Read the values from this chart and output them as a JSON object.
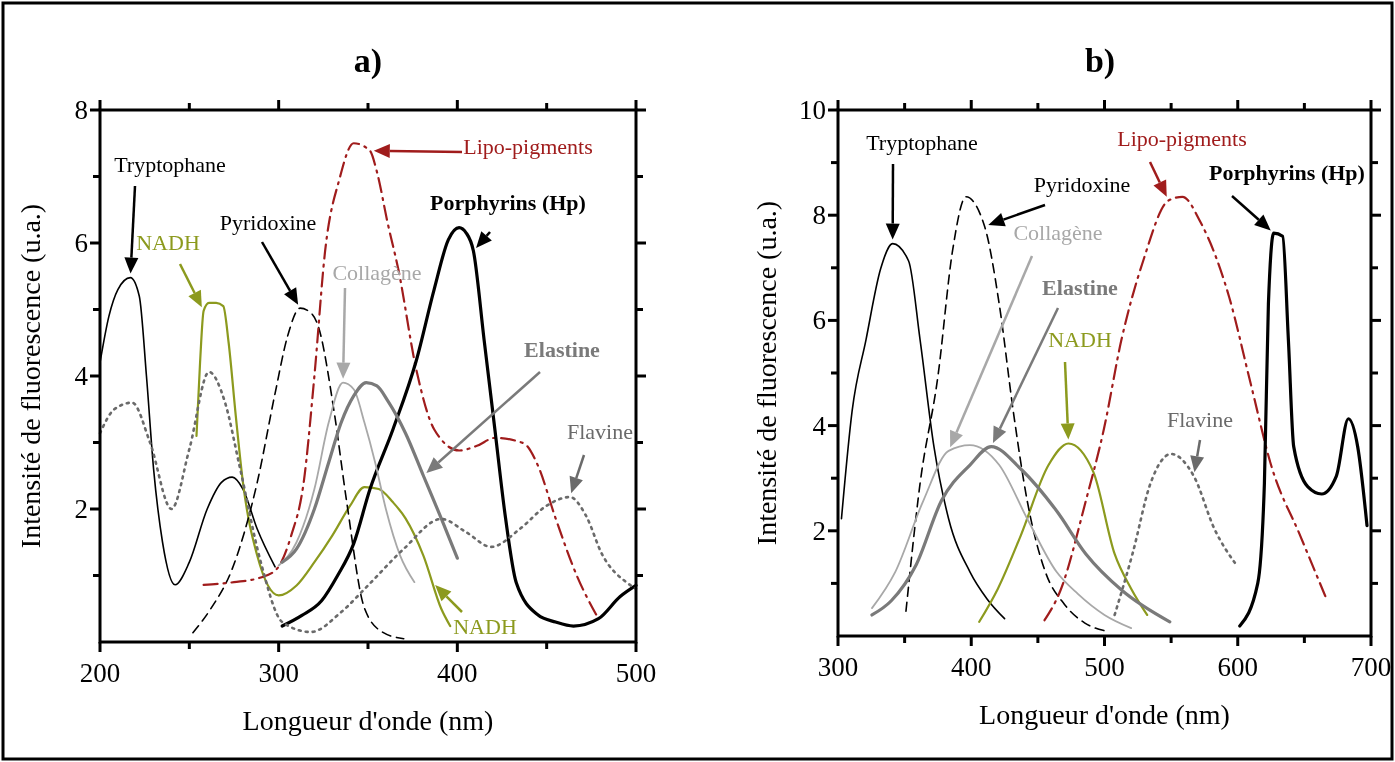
{
  "chart_data": [
    {
      "type": "line",
      "title": "a)",
      "xlabel": "Longueur d'onde (nm)",
      "ylabel": "Intensité de fluorescence (u.a.)",
      "xlim": [
        200,
        500
      ],
      "ylim": [
        0,
        8
      ],
      "xticks": [
        200,
        {
          "value": 250,
          "label": null
        },
        300,
        {
          "value": 350,
          "label": null
        },
        400,
        {
          "value": 450,
          "label": null
        },
        500
      ],
      "yticks": [
        {
          "value": 1,
          "label": null
        },
        2,
        {
          "value": 3,
          "label": null
        },
        4,
        {
          "value": 5,
          "label": null
        },
        6,
        {
          "value": 7,
          "label": null
        },
        8
      ],
      "grid": false,
      "series": [
        {
          "color": "#000000",
          "line_style": "solid",
          "x": [
            200,
            205,
            210,
            217,
            222,
            226,
            230,
            235,
            242,
            250,
            260,
            268,
            274,
            280,
            288,
            298
          ],
          "values": [
            4.2,
            4.9,
            5.3,
            5.48,
            5.2,
            4.0,
            2.6,
            1.5,
            0.86,
            1.2,
            2.0,
            2.4,
            2.48,
            2.3,
            1.7,
            1.13
          ]
        },
        {
          "color": "#8c9a1e",
          "line_style": "solid",
          "x": [
            254,
            256,
            258,
            261,
            265,
            269,
            272,
            276,
            280,
            288,
            300,
            310,
            320,
            330,
            340,
            348,
            356,
            364,
            371,
            381,
            391,
            396
          ],
          "values": [
            3.1,
            4.2,
            4.98,
            5.1,
            5.1,
            5.05,
            4.5,
            3.4,
            2.4,
            1.3,
            0.7,
            0.85,
            1.2,
            1.6,
            2.05,
            2.33,
            2.3,
            2.1,
            1.86,
            1.3,
            0.5,
            0.24
          ]
        },
        {
          "color": "#000000",
          "line_style": "dashed",
          "x": [
            252,
            262,
            274,
            288,
            298,
            305,
            312,
            318,
            322,
            331,
            338,
            348,
            358,
            370
          ],
          "values": [
            0.14,
            0.5,
            1.1,
            2.4,
            3.74,
            4.6,
            5.02,
            4.95,
            4.76,
            3.47,
            2.12,
            0.51,
            0.15,
            0.05
          ]
        },
        {
          "color": "#a01c1c",
          "line_style": "dashdot",
          "x": [
            258,
            275,
            290,
            299,
            307,
            314,
            320,
            326,
            334,
            342,
            351,
            355,
            361,
            367,
            377,
            387,
            401,
            411,
            421,
            437,
            445,
            455,
            467,
            479
          ],
          "values": [
            0.86,
            0.9,
            0.97,
            1.1,
            1.6,
            2.4,
            4.0,
            5.88,
            6.96,
            7.5,
            7.39,
            7.07,
            6.3,
            5.6,
            4.1,
            3.2,
            2.88,
            2.95,
            3.07,
            2.99,
            2.66,
            1.86,
            0.99,
            0.35
          ]
        },
        {
          "color": "#000000",
          "line_style": "solid",
          "x": [
            302,
            313,
            324,
            333,
            342,
            351,
            364,
            377,
            387,
            395,
            401,
            405,
            409,
            415,
            421,
            427,
            433,
            445,
            455,
            465,
            479,
            491,
            500
          ],
          "values": [
            0.24,
            0.4,
            0.62,
            1.0,
            1.48,
            2.29,
            3.2,
            4.23,
            5.3,
            6.05,
            6.23,
            6.15,
            5.88,
            4.54,
            3.2,
            1.86,
            0.89,
            0.41,
            0.3,
            0.24,
            0.35,
            0.68,
            0.85
          ]
        },
        {
          "color": "#a8a8a8",
          "line_style": "solid",
          "x": [
            300,
            310,
            320,
            328,
            336,
            342,
            348,
            354,
            360,
            368,
            376
          ],
          "values": [
            1.15,
            1.5,
            2.3,
            3.3,
            3.9,
            3.8,
            3.3,
            2.7,
            2.0,
            1.3,
            0.9
          ]
        },
        {
          "color": "#7a7a7a",
          "line_style": "solid",
          "x": [
            302,
            310,
            320,
            328,
            335,
            342,
            349,
            355,
            361,
            371,
            381,
            391,
            400
          ],
          "values": [
            1.2,
            1.4,
            2.0,
            2.7,
            3.3,
            3.7,
            3.9,
            3.85,
            3.63,
            3.14,
            2.5,
            1.86,
            1.26
          ]
        },
        {
          "color": "#6a6a6a",
          "line_style": "dotted",
          "x": [
            200,
            208,
            218,
            228,
            240,
            250,
            261,
            270,
            278,
            290,
            302,
            318,
            335,
            350,
            370,
            391,
            405,
            419,
            435,
            450,
            463,
            472,
            481,
            495,
            500
          ],
          "values": [
            3.14,
            3.5,
            3.6,
            3.0,
            2.0,
            2.9,
            4.06,
            3.6,
            2.66,
            1.2,
            0.3,
            0.15,
            0.45,
            0.85,
            1.4,
            1.85,
            1.65,
            1.43,
            1.7,
            2.05,
            2.18,
            1.9,
            1.32,
            0.89,
            0.8
          ]
        }
      ],
      "annotations": [
        "Tryptophane",
        {
          "text": "NADH",
          "x": 258,
          "y": 4.98
        },
        "Pyridoxine",
        "Lipo-pigments",
        {
          "text": "Porphyrins (Hp)",
          "x": 409,
          "y": 5.88
        },
        "Collagène",
        "Elastine",
        {
          "text": "Flavine",
          "x": 463,
          "y": 2.18
        },
        {
          "text": "NADH",
          "x": 386,
          "y": 0.9
        }
      ]
    },
    {
      "type": "line",
      "title": "b)",
      "xlabel": "Longueur d'onde (nm)",
      "ylabel": "Intensité de fluorescence (u.a.)",
      "xlim": [
        300,
        700
      ],
      "ylim": [
        0,
        10
      ],
      "xticks": [
        300,
        {
          "value": 350,
          "label": null
        },
        400,
        {
          "value": 450,
          "label": null
        },
        500,
        {
          "value": 550,
          "label": null
        },
        600,
        {
          "value": 650,
          "label": null
        },
        700
      ],
      "yticks": [
        {
          "value": 1,
          "label": null
        },
        2,
        {
          "value": 3,
          "label": null
        },
        4,
        {
          "value": 5,
          "label": null
        },
        6,
        {
          "value": 7,
          "label": null
        },
        8,
        {
          "value": 9,
          "label": null
        },
        10
      ],
      "grid": false,
      "series": [
        {
          "color": "#000000",
          "line_style": "solid",
          "x": [
            302.6,
            310.6,
            321,
            332,
            341,
            353,
            361.6,
            372,
            383,
            399,
            412,
            425
          ],
          "values": [
            2.23,
            4.28,
            5.63,
            6.98,
            7.46,
            7.13,
            5.63,
            3.6,
            2.23,
            1.22,
            0.7,
            0.33
          ]
        },
        {
          "color": "#8c9a1e",
          "line_style": "solid",
          "x": [
            406,
            420,
            437,
            458,
            473,
            491.6,
            507.6,
            520,
            532
          ],
          "values": [
            0.27,
            0.9,
            1.9,
            3.25,
            3.66,
            3.12,
            1.56,
            0.9,
            0.4
          ]
        },
        {
          "color": "#000000",
          "line_style": "dashed",
          "x": [
            351,
            361.6,
            375,
            386,
            396,
            410,
            421,
            431.5,
            442,
            455.6,
            470,
            485,
            500
          ],
          "values": [
            0.47,
            2.9,
            4.94,
            7.33,
            8.35,
            7.79,
            6.31,
            4.28,
            2.57,
            1.22,
            0.6,
            0.25,
            0.1
          ]
        },
        {
          "color": "#a01c1c",
          "line_style": "dashdot",
          "x": [
            455,
            467,
            486,
            499.6,
            512.7,
            529,
            548,
            558.5,
            572,
            593.6,
            609.6,
            625,
            647,
            666
          ],
          "values": [
            0.3,
            0.87,
            2.57,
            3.94,
            5.63,
            7.13,
            8.28,
            8.35,
            7.87,
            6.44,
            4.81,
            3.25,
            1.9,
            0.74
          ]
        },
        {
          "color": "#000000",
          "line_style": "solid",
          "x": [
            601.5,
            615,
            620,
            623,
            627,
            633.7,
            638,
            642,
            652.5,
            663,
            674,
            683,
            690,
            697
          ],
          "values": [
            0.19,
            1.0,
            2.9,
            6.31,
            7.66,
            7.6,
            5.63,
            3.6,
            2.84,
            2.7,
            3.04,
            4.13,
            3.6,
            2.1
          ]
        },
        {
          "color": "#a8a8a8",
          "line_style": "solid",
          "x": [
            325.5,
            343,
            364,
            383,
            399,
            421,
            442,
            464,
            480,
            500,
            520
          ],
          "values": [
            0.53,
            1.22,
            2.57,
            3.52,
            3.63,
            3.25,
            2.23,
            1.22,
            0.8,
            0.4,
            0.15
          ]
        },
        {
          "color": "#7a7a7a",
          "line_style": "solid",
          "x": [
            325.5,
            340,
            358.6,
            377.6,
            399,
            415,
            437,
            464,
            486,
            513,
            549
          ],
          "values": [
            0.4,
            0.67,
            1.35,
            2.57,
            3.25,
            3.6,
            3.18,
            2.38,
            1.56,
            0.87,
            0.27
          ]
        },
        {
          "color": "#6a6a6a",
          "line_style": "dotted",
          "x": [
            507.6,
            521,
            534.5,
            550,
            567,
            582.6,
            599
          ],
          "values": [
            0.4,
            1.56,
            2.9,
            3.46,
            3.04,
            2.03,
            1.35
          ]
        }
      ],
      "annotations": [
        "Tryptophane",
        "NADH",
        {
          "text": "Pyridoxine",
          "x": 410,
          "y": 7.79
        },
        {
          "text": "Lipo-pigments",
          "x": 548,
          "y": 8.28
        },
        {
          "text": "Porphyrins (Hp)",
          "x": 627,
          "y": 7.66
        },
        "Collagène",
        "Elastine",
        {
          "text": "Flavine",
          "x": 567,
          "y": 3.04
        }
      ]
    }
  ]
}
